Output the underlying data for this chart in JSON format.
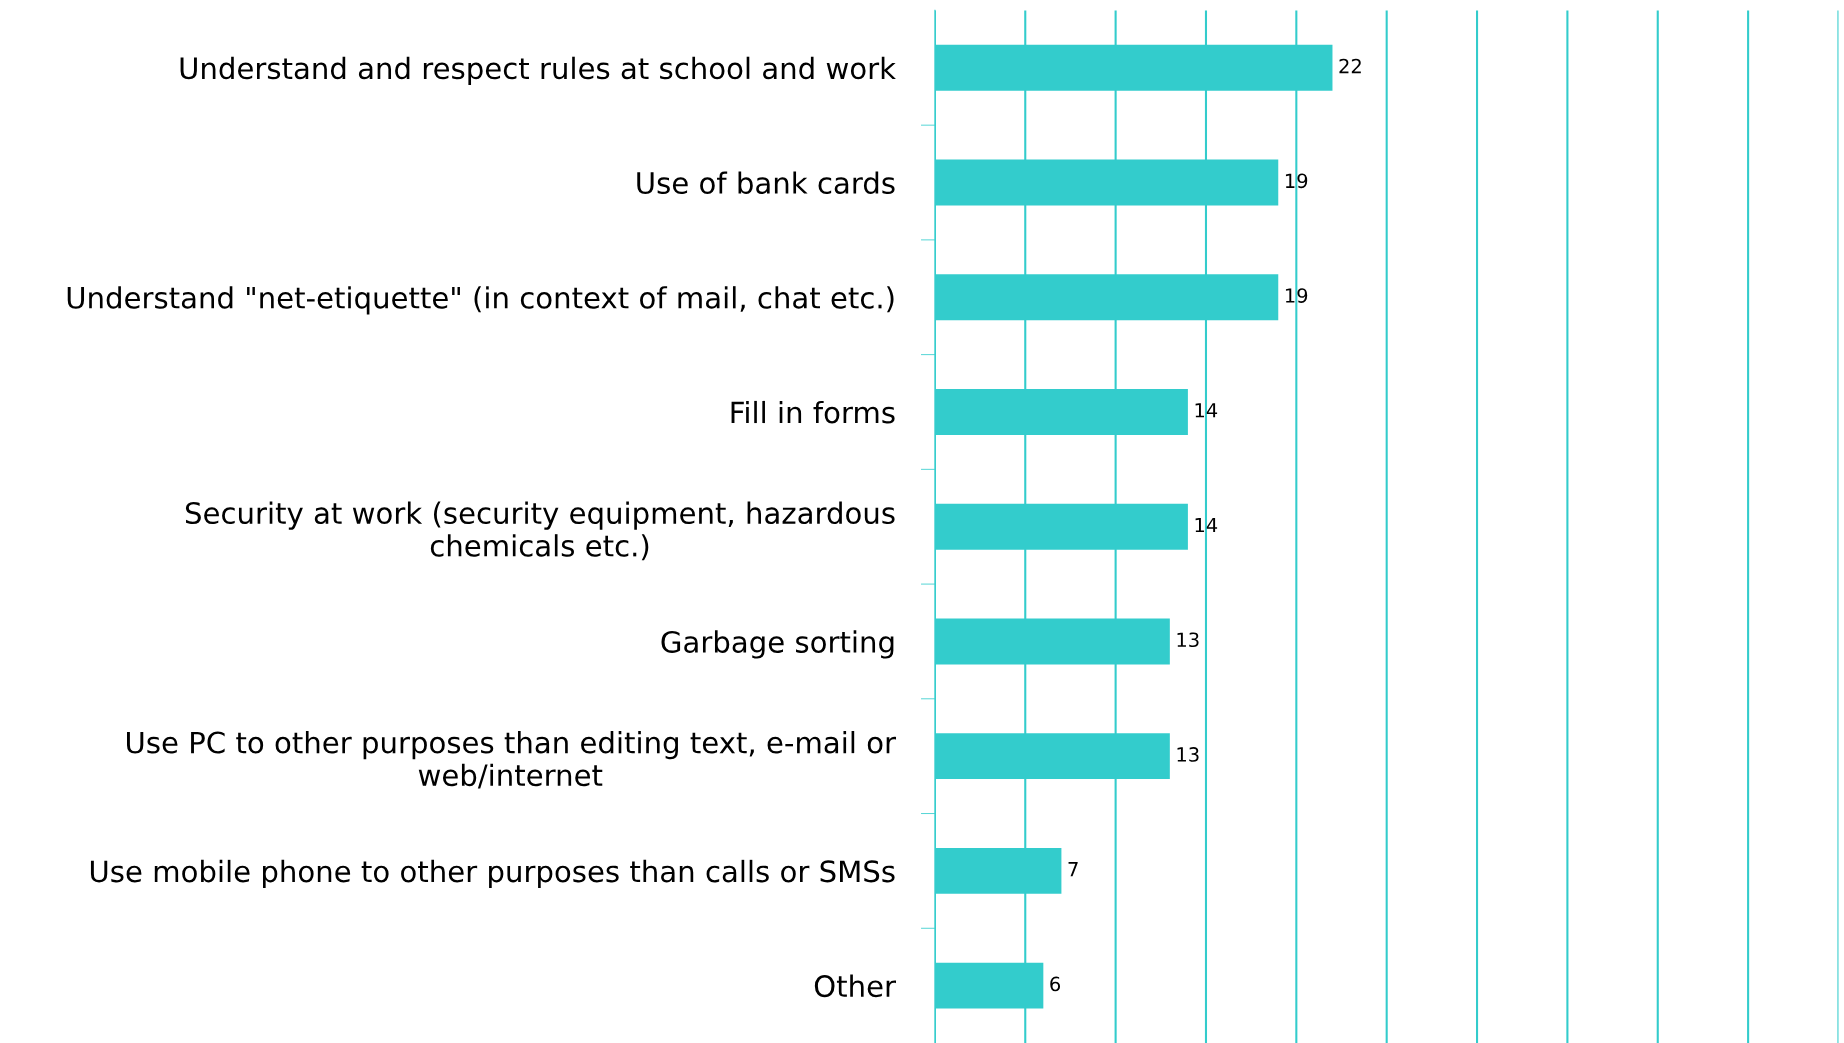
{
  "chart_data": {
    "type": "bar",
    "orientation": "horizontal",
    "categories": [
      "Understand and respect rules at school and work",
      "Use of bank cards",
      "Understand \"net-etiquette\" (in context of mail, chat etc.)",
      "Fill in forms",
      "Security at work (security equipment, hazardous\nchemicals etc.)",
      "Garbage sorting",
      "Use PC to other purposes than editing text, e-mail or\nweb/internet",
      "Use mobile phone to other purposes than calls or SMSs",
      "Other"
    ],
    "values": [
      22,
      19,
      19,
      14,
      14,
      13,
      13,
      7,
      6
    ],
    "color": "#33cccc",
    "xlim": [
      0,
      50
    ],
    "xticks": [
      {
        "value": 0,
        "label": null
      },
      {
        "value": 5,
        "label": null
      },
      {
        "value": 10,
        "label": null
      },
      {
        "value": 15,
        "label": null
      },
      {
        "value": 20,
        "label": null
      },
      {
        "value": 25,
        "label": null
      },
      {
        "value": 30,
        "label": null
      },
      {
        "value": 35,
        "label": null
      },
      {
        "value": 40,
        "label": null
      },
      {
        "value": 45,
        "label": null
      },
      {
        "value": 50,
        "label": null
      }
    ],
    "tick_labels": "y",
    "grid": "x",
    "data_labels": true
  }
}
